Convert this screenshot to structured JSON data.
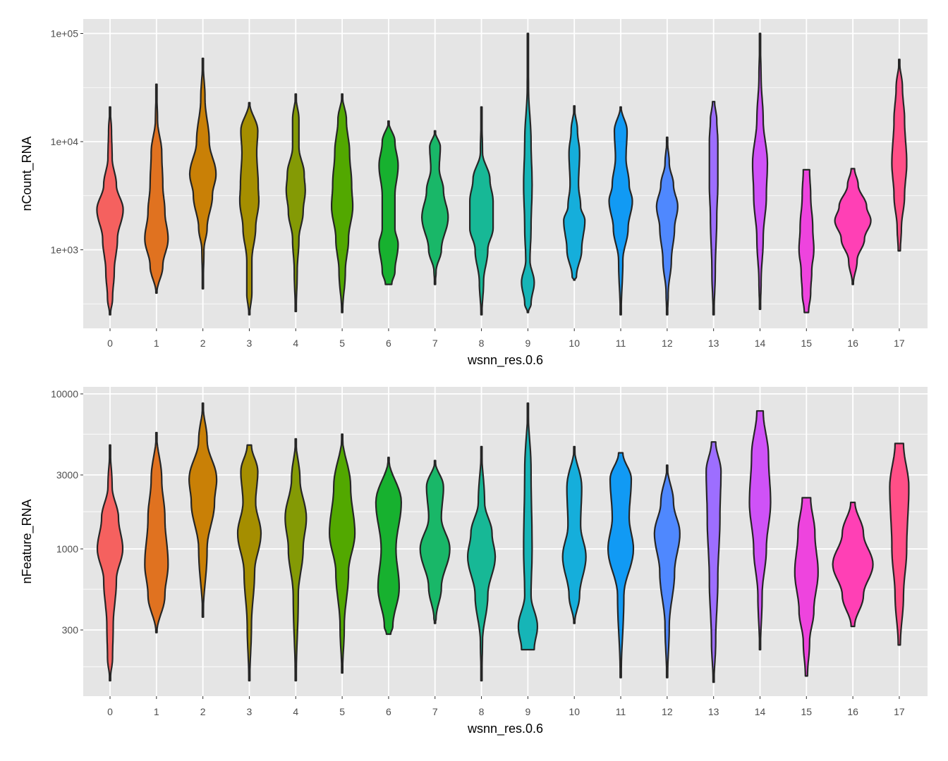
{
  "chart_data": [
    {
      "type": "violin",
      "xlabel": "wsnn_res.0.6",
      "ylabel": "nCount_RNA",
      "y_scale": "log10",
      "ylim_log10": [
        2.3,
        5.12
      ],
      "y_ticks": [
        {
          "value": 100000,
          "label": "1e+05"
        },
        {
          "value": 10000,
          "label": "1e+04"
        },
        {
          "value": 1000,
          "label": "1e+03"
        }
      ],
      "y_minor_log10": [
        2.5,
        3.5,
        4.5
      ],
      "categories": [
        "0",
        "1",
        "2",
        "3",
        "4",
        "5",
        "6",
        "7",
        "8",
        "9",
        "10",
        "11",
        "12",
        "13",
        "14",
        "15",
        "16",
        "17"
      ],
      "profile_note": "each violin: [log10 value, relative half-width]",
      "violins": [
        [
          [
            4.32,
            0
          ],
          [
            4.1,
            0.07
          ],
          [
            3.85,
            0.1
          ],
          [
            3.6,
            0.3
          ],
          [
            3.37,
            0.62
          ],
          [
            3.1,
            0.35
          ],
          [
            2.8,
            0.2
          ],
          [
            2.55,
            0.12
          ],
          [
            2.4,
            0.02
          ]
        ],
        [
          [
            4.53,
            0
          ],
          [
            4.2,
            0.05
          ],
          [
            3.9,
            0.25
          ],
          [
            3.6,
            0.3
          ],
          [
            3.35,
            0.4
          ],
          [
            3.1,
            0.55
          ],
          [
            2.85,
            0.3
          ],
          [
            2.6,
            0.02
          ]
        ],
        [
          [
            4.77,
            0
          ],
          [
            4.4,
            0.1
          ],
          [
            4.0,
            0.3
          ],
          [
            3.7,
            0.62
          ],
          [
            3.5,
            0.45
          ],
          [
            3.2,
            0.2
          ],
          [
            3.0,
            0.05
          ],
          [
            2.64,
            0.01
          ]
        ],
        [
          [
            4.36,
            0.02
          ],
          [
            4.1,
            0.4
          ],
          [
            3.9,
            0.35
          ],
          [
            3.6,
            0.42
          ],
          [
            3.45,
            0.45
          ],
          [
            3.2,
            0.3
          ],
          [
            2.9,
            0.12
          ],
          [
            2.6,
            0.12
          ],
          [
            2.4,
            0.02
          ]
        ],
        [
          [
            4.44,
            0
          ],
          [
            4.2,
            0.15
          ],
          [
            3.95,
            0.15
          ],
          [
            3.7,
            0.4
          ],
          [
            3.55,
            0.45
          ],
          [
            3.35,
            0.35
          ],
          [
            3.1,
            0.15
          ],
          [
            2.8,
            0.07
          ],
          [
            2.43,
            0.02
          ]
        ],
        [
          [
            4.44,
            0
          ],
          [
            4.2,
            0.2
          ],
          [
            3.9,
            0.35
          ],
          [
            3.6,
            0.45
          ],
          [
            3.4,
            0.5
          ],
          [
            3.1,
            0.3
          ],
          [
            2.8,
            0.15
          ],
          [
            2.42,
            0.02
          ]
        ],
        [
          [
            4.19,
            0
          ],
          [
            4.0,
            0.3
          ],
          [
            3.78,
            0.45
          ],
          [
            3.5,
            0.3
          ],
          [
            3.2,
            0.3
          ],
          [
            3.05,
            0.45
          ],
          [
            2.8,
            0.3
          ],
          [
            2.68,
            0.15
          ]
        ],
        [
          [
            4.1,
            0
          ],
          [
            3.95,
            0.25
          ],
          [
            3.75,
            0.2
          ],
          [
            3.55,
            0.4
          ],
          [
            3.3,
            0.62
          ],
          [
            3.0,
            0.3
          ],
          [
            2.8,
            0.05
          ],
          [
            2.68,
            0.01
          ]
        ],
        [
          [
            4.32,
            0
          ],
          [
            3.9,
            0.05
          ],
          [
            3.65,
            0.4
          ],
          [
            3.45,
            0.55
          ],
          [
            3.2,
            0.55
          ],
          [
            3.0,
            0.3
          ],
          [
            2.7,
            0.1
          ],
          [
            2.4,
            0.02
          ]
        ],
        [
          [
            5.0,
            0
          ],
          [
            4.5,
            0.03
          ],
          [
            4.0,
            0.15
          ],
          [
            3.6,
            0.2
          ],
          [
            3.2,
            0.15
          ],
          [
            2.9,
            0.1
          ],
          [
            2.7,
            0.3
          ],
          [
            2.5,
            0.15
          ],
          [
            2.42,
            0.02
          ]
        ],
        [
          [
            4.33,
            0
          ],
          [
            4.1,
            0.15
          ],
          [
            3.9,
            0.25
          ],
          [
            3.6,
            0.2
          ],
          [
            3.4,
            0.3
          ],
          [
            3.27,
            0.5
          ],
          [
            3.0,
            0.35
          ],
          [
            2.75,
            0.1
          ],
          [
            2.72,
            0.02
          ]
        ],
        [
          [
            4.32,
            0.02
          ],
          [
            4.1,
            0.3
          ],
          [
            3.85,
            0.25
          ],
          [
            3.6,
            0.4
          ],
          [
            3.45,
            0.55
          ],
          [
            3.2,
            0.35
          ],
          [
            2.9,
            0.1
          ],
          [
            2.4,
            0.02
          ]
        ],
        [
          [
            4.04,
            0
          ],
          [
            3.8,
            0.1
          ],
          [
            3.6,
            0.3
          ],
          [
            3.4,
            0.5
          ],
          [
            3.2,
            0.35
          ],
          [
            2.9,
            0.2
          ],
          [
            2.6,
            0.05
          ],
          [
            2.4,
            0.02
          ]
        ],
        [
          [
            4.37,
            0.05
          ],
          [
            4.2,
            0.15
          ],
          [
            4.0,
            0.2
          ],
          [
            3.6,
            0.2
          ],
          [
            3.3,
            0.15
          ],
          [
            2.8,
            0.08
          ],
          [
            2.4,
            0.02
          ]
        ],
        [
          [
            5.0,
            0
          ],
          [
            4.6,
            0.05
          ],
          [
            4.2,
            0.15
          ],
          [
            3.8,
            0.35
          ],
          [
            3.5,
            0.3
          ],
          [
            3.1,
            0.15
          ],
          [
            2.7,
            0.05
          ],
          [
            2.45,
            0.02
          ]
        ],
        [
          [
            3.74,
            0.15
          ],
          [
            3.5,
            0.2
          ],
          [
            3.2,
            0.3
          ],
          [
            3.0,
            0.35
          ],
          [
            2.8,
            0.25
          ],
          [
            2.6,
            0.2
          ],
          [
            2.42,
            0.1
          ]
        ],
        [
          [
            3.75,
            0.08
          ],
          [
            3.6,
            0.25
          ],
          [
            3.4,
            0.65
          ],
          [
            3.27,
            0.85
          ],
          [
            3.1,
            0.55
          ],
          [
            2.9,
            0.2
          ],
          [
            2.68,
            0.02
          ]
        ],
        [
          [
            4.76,
            0
          ],
          [
            4.5,
            0.15
          ],
          [
            4.2,
            0.25
          ],
          [
            3.8,
            0.35
          ],
          [
            3.5,
            0.25
          ],
          [
            3.2,
            0.1
          ],
          [
            2.99,
            0.05
          ]
        ]
      ]
    },
    {
      "type": "violin",
      "xlabel": "wsnn_res.0.6",
      "ylabel": "nFeature_RNA",
      "y_scale": "log10",
      "ylim_log10": [
        2.06,
        4.07
      ],
      "y_ticks": [
        {
          "value": 10000,
          "label": "10000"
        },
        {
          "value": 3000,
          "label": "3000"
        },
        {
          "value": 1000,
          "label": "1000"
        },
        {
          "value": 300,
          "label": "300"
        }
      ],
      "y_minor_log10": [
        3.74,
        3.24,
        2.74,
        2.24
      ],
      "categories": [
        "0",
        "1",
        "2",
        "3",
        "4",
        "5",
        "6",
        "7",
        "8",
        "9",
        "10",
        "11",
        "12",
        "13",
        "14",
        "15",
        "16",
        "17"
      ],
      "profile_note": "each violin: [log10 value, relative half-width]",
      "violins": [
        [
          [
            3.67,
            0
          ],
          [
            3.4,
            0.1
          ],
          [
            3.2,
            0.4
          ],
          [
            3.0,
            0.6
          ],
          [
            2.8,
            0.3
          ],
          [
            2.5,
            0.15
          ],
          [
            2.3,
            0.12
          ],
          [
            2.15,
            0.01
          ]
        ],
        [
          [
            3.75,
            0
          ],
          [
            3.45,
            0.25
          ],
          [
            3.2,
            0.4
          ],
          [
            2.9,
            0.55
          ],
          [
            2.7,
            0.4
          ],
          [
            2.46,
            0.02
          ]
        ],
        [
          [
            3.94,
            0
          ],
          [
            3.7,
            0.2
          ],
          [
            3.45,
            0.65
          ],
          [
            3.3,
            0.55
          ],
          [
            3.0,
            0.2
          ],
          [
            2.56,
            0.01
          ]
        ],
        [
          [
            3.67,
            0.1
          ],
          [
            3.5,
            0.4
          ],
          [
            3.3,
            0.3
          ],
          [
            3.1,
            0.55
          ],
          [
            2.85,
            0.25
          ],
          [
            2.5,
            0.1
          ],
          [
            2.15,
            0.02
          ]
        ],
        [
          [
            3.71,
            0
          ],
          [
            3.45,
            0.2
          ],
          [
            3.2,
            0.5
          ],
          [
            3.0,
            0.35
          ],
          [
            2.7,
            0.12
          ],
          [
            2.15,
            0.02
          ]
        ],
        [
          [
            3.74,
            0
          ],
          [
            3.4,
            0.4
          ],
          [
            3.1,
            0.6
          ],
          [
            2.85,
            0.3
          ],
          [
            2.5,
            0.1
          ],
          [
            2.2,
            0.02
          ]
        ],
        [
          [
            3.59,
            0
          ],
          [
            3.3,
            0.6
          ],
          [
            3.0,
            0.35
          ],
          [
            2.75,
            0.5
          ],
          [
            2.5,
            0.2
          ],
          [
            2.45,
            0.1
          ]
        ],
        [
          [
            3.57,
            0
          ],
          [
            3.4,
            0.4
          ],
          [
            3.2,
            0.3
          ],
          [
            3.0,
            0.7
          ],
          [
            2.75,
            0.3
          ],
          [
            2.55,
            0.05
          ],
          [
            2.52,
            0.01
          ]
        ],
        [
          [
            3.66,
            0
          ],
          [
            3.3,
            0.15
          ],
          [
            3.1,
            0.5
          ],
          [
            2.95,
            0.65
          ],
          [
            2.7,
            0.3
          ],
          [
            2.4,
            0.05
          ],
          [
            2.15,
            0.01
          ]
        ],
        [
          [
            3.94,
            0
          ],
          [
            3.5,
            0.15
          ],
          [
            3.0,
            0.2
          ],
          [
            2.7,
            0.15
          ],
          [
            2.5,
            0.45
          ],
          [
            2.35,
            0.3
          ]
        ],
        [
          [
            3.66,
            0
          ],
          [
            3.4,
            0.35
          ],
          [
            3.15,
            0.3
          ],
          [
            2.95,
            0.55
          ],
          [
            2.7,
            0.25
          ],
          [
            2.52,
            0.02
          ]
        ],
        [
          [
            3.62,
            0.1
          ],
          [
            3.45,
            0.5
          ],
          [
            3.2,
            0.4
          ],
          [
            3.0,
            0.6
          ],
          [
            2.7,
            0.15
          ],
          [
            2.17,
            0.02
          ]
        ],
        [
          [
            3.54,
            0
          ],
          [
            3.3,
            0.3
          ],
          [
            3.1,
            0.6
          ],
          [
            2.85,
            0.35
          ],
          [
            2.5,
            0.1
          ],
          [
            2.17,
            0.02
          ]
        ],
        [
          [
            3.69,
            0.1
          ],
          [
            3.5,
            0.35
          ],
          [
            3.2,
            0.3
          ],
          [
            2.8,
            0.2
          ],
          [
            2.4,
            0.1
          ],
          [
            2.14,
            0.02
          ]
        ],
        [
          [
            3.89,
            0.15
          ],
          [
            3.6,
            0.4
          ],
          [
            3.3,
            0.5
          ],
          [
            3.0,
            0.3
          ],
          [
            2.7,
            0.1
          ],
          [
            2.35,
            0.02
          ]
        ],
        [
          [
            3.33,
            0.2
          ],
          [
            3.1,
            0.4
          ],
          [
            2.85,
            0.55
          ],
          [
            2.6,
            0.35
          ],
          [
            2.4,
            0.15
          ],
          [
            2.18,
            0.05
          ]
        ],
        [
          [
            3.3,
            0.1
          ],
          [
            3.1,
            0.5
          ],
          [
            2.9,
            0.95
          ],
          [
            2.7,
            0.5
          ],
          [
            2.5,
            0.08
          ]
        ],
        [
          [
            3.68,
            0.2
          ],
          [
            3.4,
            0.45
          ],
          [
            3.0,
            0.35
          ],
          [
            2.7,
            0.2
          ],
          [
            2.38,
            0.05
          ]
        ]
      ]
    }
  ],
  "colors": [
    "#F5615F",
    "#E07220",
    "#C98006",
    "#A58E00",
    "#849A05",
    "#52A800",
    "#17B12F",
    "#19B768",
    "#17B896",
    "#16B5B7",
    "#15AEDB",
    "#119AF4",
    "#4F88FE",
    "#9D6EFF",
    "#CF52F7",
    "#EE44DE",
    "#FF40B5",
    "#FF4F87"
  ],
  "panel_background": "#E5E5E5",
  "outline_color": "#262626"
}
